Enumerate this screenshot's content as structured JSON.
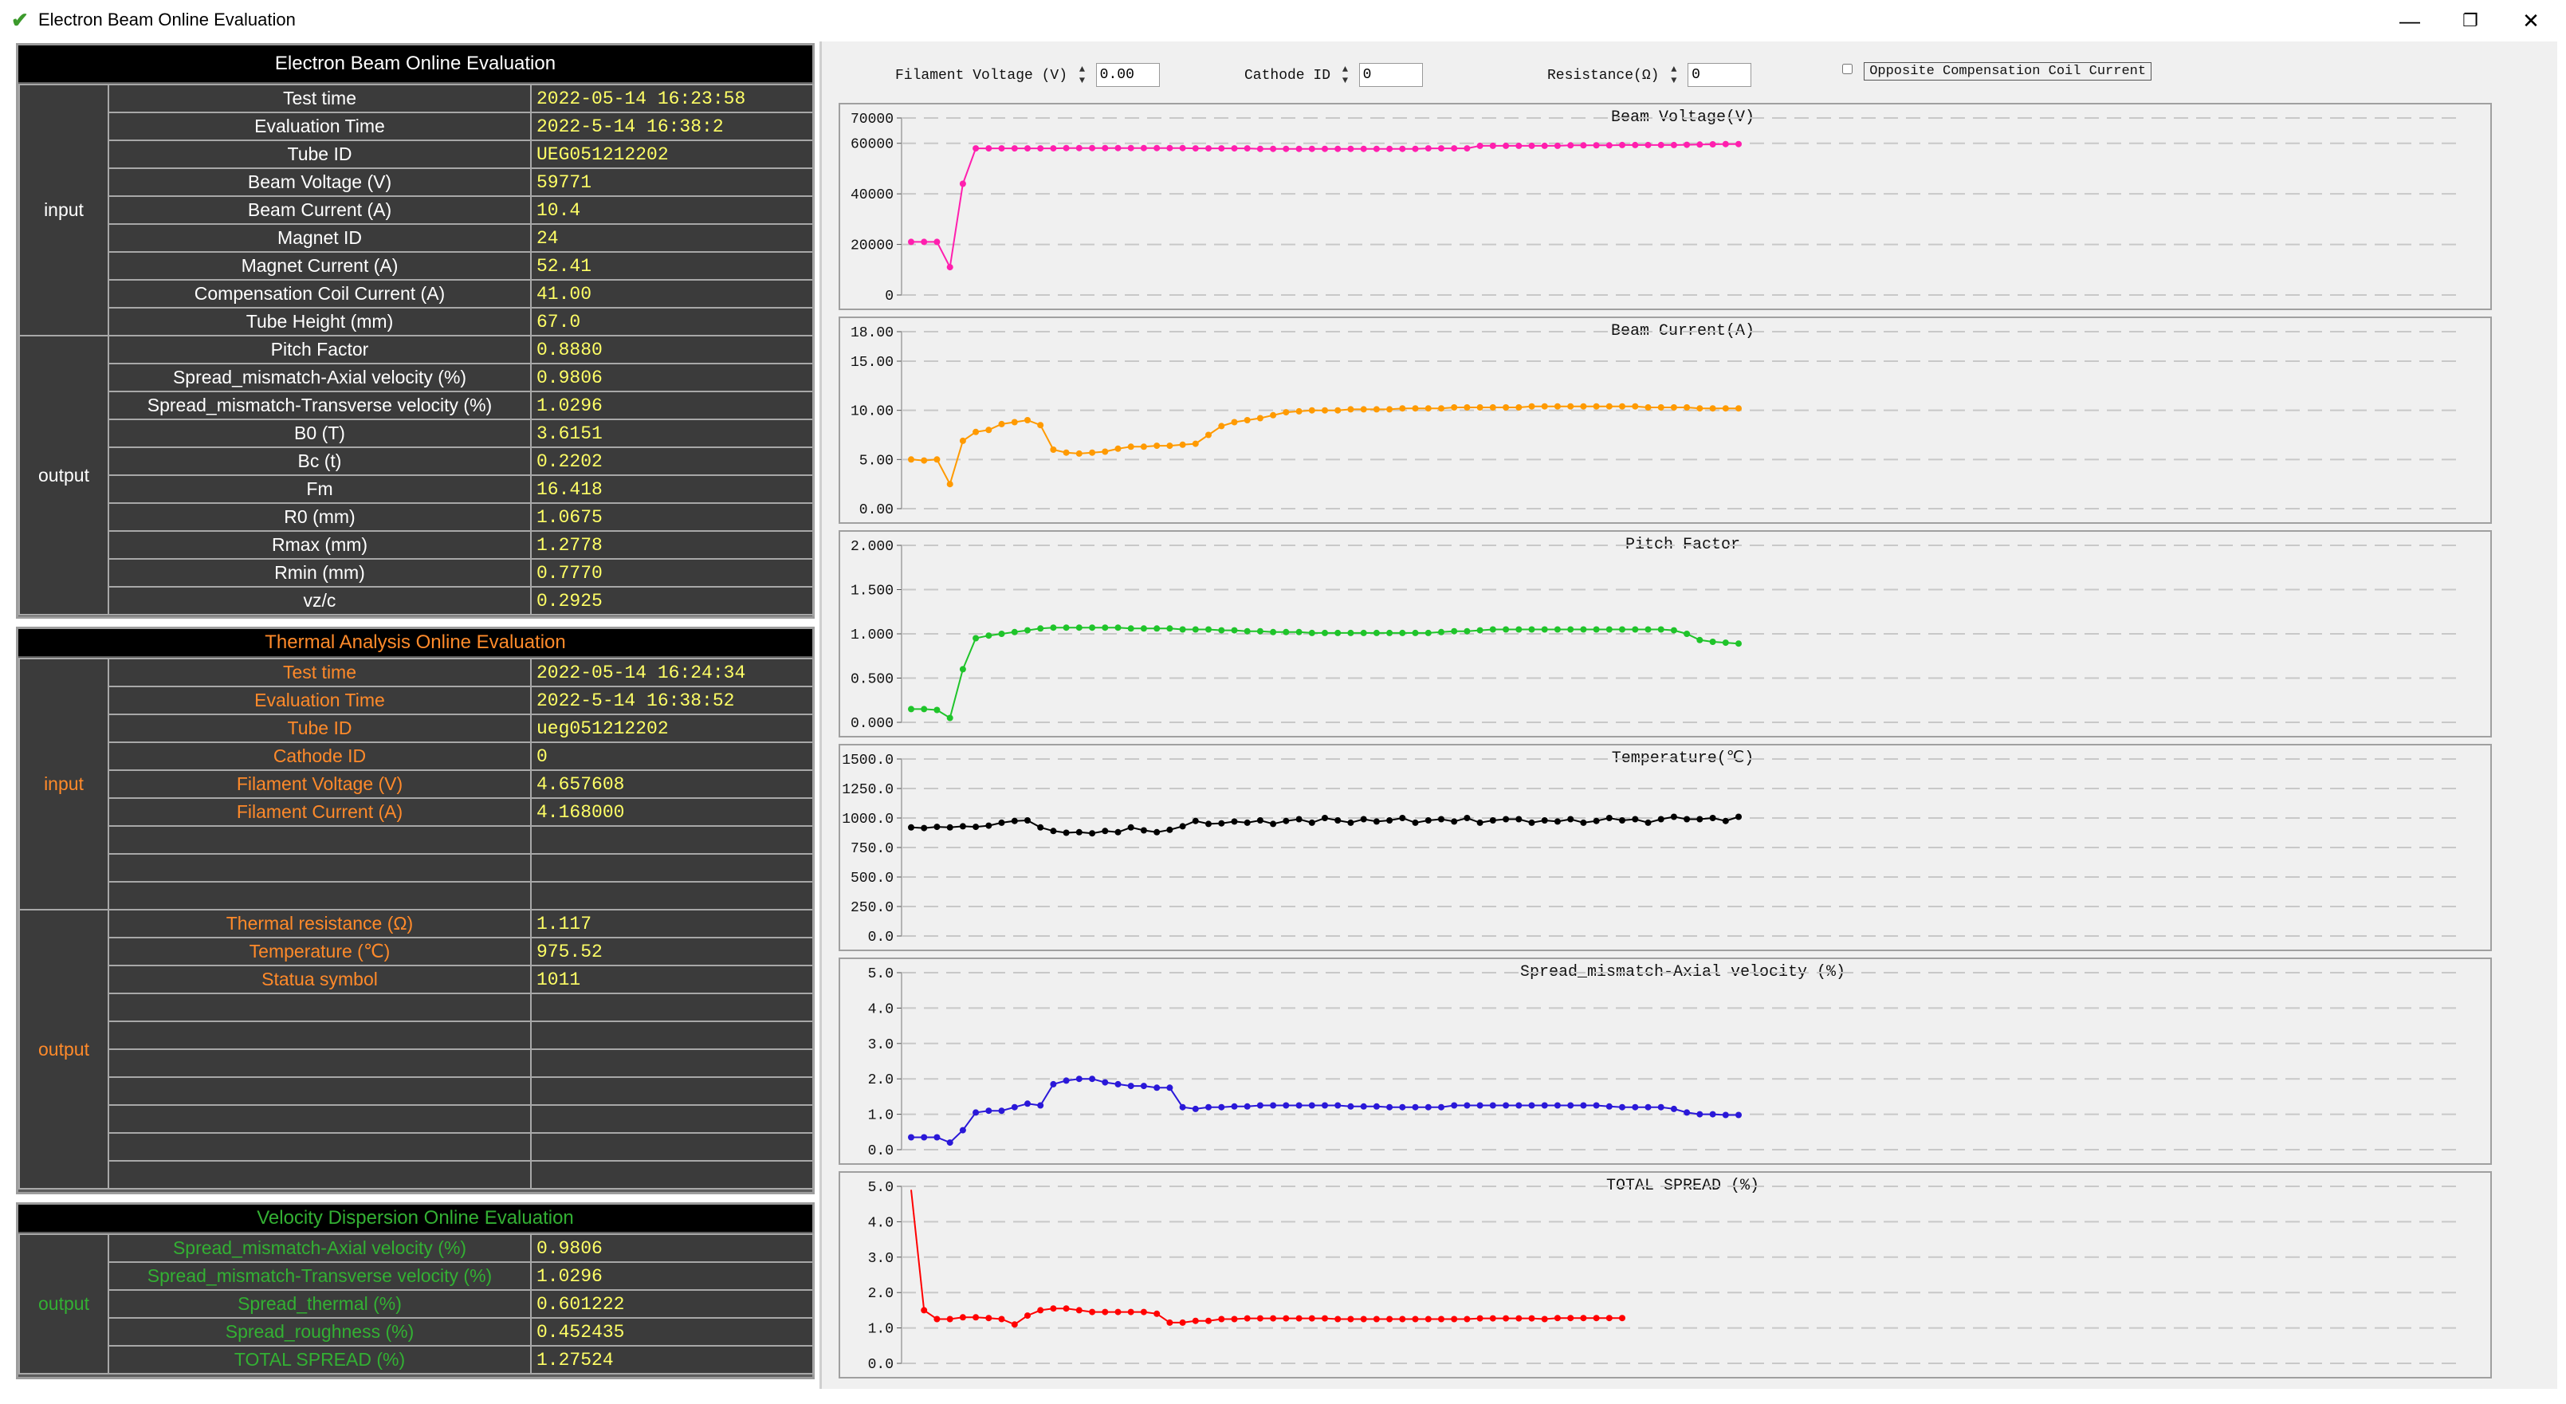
{
  "window": {
    "title": "Electron Beam Online Evaluation",
    "icon": "check-icon",
    "minimize": "—",
    "maximize": "❐",
    "close": "✕"
  },
  "beam": {
    "title": "Electron Beam Online Evaluation",
    "input_label": "input",
    "output_label": "output",
    "inputs": [
      {
        "label": "Test time",
        "value": "2022-05-14 16:23:58"
      },
      {
        "label": "Evaluation Time",
        "value": "2022-5-14 16:38:2"
      },
      {
        "label": "Tube ID",
        "value": "UEG051212202"
      },
      {
        "label": "Beam Voltage (V)",
        "value": "59771"
      },
      {
        "label": "Beam Current (A)",
        "value": "10.4"
      },
      {
        "label": "Magnet ID",
        "value": "24"
      },
      {
        "label": "Magnet Current (A)",
        "value": "52.41"
      },
      {
        "label": "Compensation Coil Current (A)",
        "value": "41.00"
      },
      {
        "label": "Tube Height (mm)",
        "value": "67.0"
      }
    ],
    "outputs": [
      {
        "label": "Pitch Factor",
        "value": "0.8880"
      },
      {
        "label": "Spread_mismatch-Axial velocity  (%)",
        "value": "0.9806"
      },
      {
        "label": "Spread_mismatch-Transverse velocity  (%)",
        "value": "1.0296"
      },
      {
        "label": "B0 (T)",
        "value": "3.6151"
      },
      {
        "label": "Bc (t)",
        "value": "0.2202"
      },
      {
        "label": "Fm",
        "value": "16.418"
      },
      {
        "label": "R0 (mm)",
        "value": "1.0675"
      },
      {
        "label": "Rmax (mm)",
        "value": "1.2778"
      },
      {
        "label": "Rmin (mm)",
        "value": "0.7770"
      },
      {
        "label": "vz/c",
        "value": "0.2925"
      }
    ]
  },
  "thermal": {
    "title": "Thermal Analysis Online Evaluation",
    "input_label": "input",
    "output_label": "output",
    "inputs": [
      {
        "label": "Test time",
        "value": "2022-05-14 16:24:34"
      },
      {
        "label": "Evaluation Time",
        "value": "2022-5-14 16:38:52"
      },
      {
        "label": "Tube ID",
        "value": "ueg051212202"
      },
      {
        "label": "Cathode ID",
        "value": "0"
      },
      {
        "label": "Filament Voltage (V)",
        "value": "4.657608"
      },
      {
        "label": "Filament Current (A)",
        "value": "4.168000"
      },
      {
        "label": "",
        "value": ""
      },
      {
        "label": "",
        "value": ""
      },
      {
        "label": "",
        "value": ""
      }
    ],
    "outputs": [
      {
        "label": "Thermal resistance  (Ω)",
        "value": "1.117"
      },
      {
        "label": "Temperature  (℃)",
        "value": "975.52"
      },
      {
        "label": "Statua symbol",
        "value": "1011"
      },
      {
        "label": "",
        "value": ""
      },
      {
        "label": "",
        "value": ""
      },
      {
        "label": "",
        "value": ""
      },
      {
        "label": "",
        "value": ""
      },
      {
        "label": "",
        "value": ""
      },
      {
        "label": "",
        "value": ""
      },
      {
        "label": "",
        "value": ""
      }
    ]
  },
  "velocity": {
    "title": "Velocity Dispersion Online Evaluation",
    "output_label": "output",
    "outputs": [
      {
        "label": "Spread_mismatch-Axial velocity  (%)",
        "value": "0.9806"
      },
      {
        "label": "Spread_mismatch-Transverse velocity  (%)",
        "value": "1.0296"
      },
      {
        "label": "Spread_thermal  (%)",
        "value": "0.601222"
      },
      {
        "label": "Spread_roughness  (%)",
        "value": "0.452435"
      },
      {
        "label": "TOTAL SPREAD   (%)",
        "value": "1.27524"
      }
    ]
  },
  "controls": {
    "filament_voltage": {
      "label": "Filament Voltage (V)",
      "value": "0.00"
    },
    "cathode_id": {
      "label": "Cathode ID",
      "value": "0"
    },
    "resistance": {
      "label": "Resistance(Ω)",
      "value": "0"
    },
    "opposite": {
      "label": "Opposite Compensation Coil Current",
      "checked": false
    }
  },
  "colors": {
    "beam_title": "#ffffff",
    "thermal_text": "#ff8a2a",
    "velocity_text": "#33b033",
    "value_text": "#ffff66",
    "label_text": "#ffffff"
  },
  "chart_data": [
    {
      "type": "line",
      "title": "Beam Voltage(V)",
      "color": "#ff1fae",
      "ylim": [
        0,
        70000
      ],
      "yticks": [
        0,
        20000,
        40000,
        60000,
        70000
      ],
      "ytick_labels": [
        "0",
        "20000",
        "40000",
        "60000",
        "70000"
      ],
      "y": [
        21000,
        21000,
        21000,
        11000,
        44000,
        58000,
        58000,
        58000,
        58000,
        58000,
        58000,
        58000,
        58100,
        58100,
        58100,
        58100,
        58100,
        58100,
        58100,
        58100,
        58100,
        58100,
        58000,
        58000,
        58000,
        58000,
        58000,
        57800,
        57800,
        57800,
        57800,
        57800,
        57800,
        57800,
        57800,
        57800,
        57800,
        57800,
        57800,
        57800,
        58000,
        58000,
        58000,
        58000,
        59000,
        59000,
        59000,
        59000,
        59000,
        59000,
        59000,
        59200,
        59200,
        59200,
        59200,
        59300,
        59300,
        59300,
        59300,
        59300,
        59400,
        59500,
        59600,
        59700,
        59700
      ]
    },
    {
      "type": "line",
      "title": "Beam Current(A)",
      "color": "#ff9a00",
      "ylim": [
        0,
        18
      ],
      "yticks": [
        0,
        5,
        10,
        15,
        18
      ],
      "ytick_labels": [
        "0.00",
        "5.00",
        "10.00",
        "15.00",
        "18.00"
      ],
      "y": [
        5.0,
        4.9,
        5.0,
        2.5,
        6.9,
        7.8,
        8.0,
        8.6,
        8.8,
        9.0,
        8.5,
        6.0,
        5.7,
        5.6,
        5.7,
        5.8,
        6.1,
        6.3,
        6.3,
        6.4,
        6.4,
        6.5,
        6.6,
        7.5,
        8.4,
        8.8,
        9.0,
        9.2,
        9.5,
        9.8,
        9.9,
        10.0,
        10.0,
        10.0,
        10.1,
        10.1,
        10.1,
        10.1,
        10.2,
        10.2,
        10.2,
        10.2,
        10.3,
        10.3,
        10.3,
        10.3,
        10.3,
        10.3,
        10.4,
        10.4,
        10.4,
        10.4,
        10.4,
        10.4,
        10.4,
        10.4,
        10.4,
        10.3,
        10.3,
        10.3,
        10.3,
        10.2,
        10.2,
        10.2,
        10.2
      ]
    },
    {
      "type": "line",
      "title": "Pitch Factor",
      "color": "#1fc42a",
      "ylim": [
        0,
        2
      ],
      "yticks": [
        0,
        0.5,
        1,
        1.5,
        2
      ],
      "ytick_labels": [
        "0.000",
        "0.500",
        "1.000",
        "1.500",
        "2.000"
      ],
      "y": [
        0.15,
        0.15,
        0.14,
        0.05,
        0.6,
        0.95,
        0.98,
        1.0,
        1.02,
        1.04,
        1.06,
        1.07,
        1.07,
        1.07,
        1.07,
        1.07,
        1.07,
        1.06,
        1.06,
        1.06,
        1.06,
        1.05,
        1.05,
        1.05,
        1.04,
        1.04,
        1.03,
        1.03,
        1.02,
        1.02,
        1.02,
        1.01,
        1.01,
        1.01,
        1.01,
        1.01,
        1.01,
        1.01,
        1.01,
        1.01,
        1.01,
        1.02,
        1.03,
        1.03,
        1.04,
        1.05,
        1.05,
        1.05,
        1.05,
        1.05,
        1.05,
        1.05,
        1.05,
        1.05,
        1.05,
        1.05,
        1.05,
        1.05,
        1.05,
        1.04,
        1.0,
        0.93,
        0.91,
        0.9,
        0.89
      ]
    },
    {
      "type": "line",
      "title": "Temperature(℃)",
      "color": "#000000",
      "ylim": [
        0,
        1500
      ],
      "yticks": [
        0,
        250,
        500,
        750,
        1000,
        1250,
        1500
      ],
      "ytick_labels": [
        "0.0",
        "250.0",
        "500.0",
        "750.0",
        "1000.0",
        "1250.0",
        "1500.0"
      ],
      "y": [
        920,
        915,
        925,
        920,
        930,
        925,
        935,
        960,
        975,
        980,
        920,
        890,
        875,
        880,
        870,
        890,
        880,
        920,
        895,
        880,
        900,
        930,
        975,
        950,
        955,
        970,
        960,
        980,
        950,
        975,
        990,
        960,
        1000,
        980,
        960,
        990,
        970,
        980,
        1000,
        960,
        980,
        990,
        970,
        1000,
        960,
        980,
        990,
        990,
        960,
        980,
        970,
        990,
        960,
        975,
        1000,
        980,
        990,
        960,
        990,
        1010,
        990,
        990,
        1000,
        975,
        1010
      ]
    },
    {
      "type": "line",
      "title": "Spread_mismatch-Axial velocity (%)",
      "color": "#2a18d8",
      "ylim": [
        0,
        5
      ],
      "yticks": [
        0,
        1,
        2,
        3,
        4,
        5
      ],
      "ytick_labels": [
        "0.0",
        "1.0",
        "2.0",
        "3.0",
        "4.0",
        "5.0"
      ],
      "y": [
        0.35,
        0.35,
        0.35,
        0.2,
        0.55,
        1.05,
        1.1,
        1.1,
        1.2,
        1.3,
        1.25,
        1.85,
        1.95,
        2.0,
        2.0,
        1.9,
        1.85,
        1.8,
        1.8,
        1.75,
        1.75,
        1.2,
        1.15,
        1.2,
        1.2,
        1.22,
        1.22,
        1.25,
        1.25,
        1.25,
        1.25,
        1.25,
        1.25,
        1.25,
        1.22,
        1.22,
        1.22,
        1.2,
        1.2,
        1.2,
        1.2,
        1.2,
        1.25,
        1.25,
        1.25,
        1.25,
        1.25,
        1.25,
        1.25,
        1.25,
        1.25,
        1.25,
        1.25,
        1.25,
        1.22,
        1.2,
        1.2,
        1.2,
        1.2,
        1.15,
        1.05,
        1.0,
        1.0,
        0.98,
        0.98
      ]
    },
    {
      "type": "line",
      "title": "TOTAL SPREAD  (%)",
      "color": "#ff0000",
      "ylim": [
        0,
        5
      ],
      "yticks": [
        0,
        1,
        2,
        3,
        4,
        5
      ],
      "ytick_labels": [
        "0.0",
        "1.0",
        "2.0",
        "3.0",
        "4.0",
        "5.0"
      ],
      "y": [
        4.9,
        1.5,
        1.25,
        1.25,
        1.3,
        1.3,
        1.28,
        1.25,
        1.1,
        1.35,
        1.5,
        1.55,
        1.55,
        1.5,
        1.45,
        1.45,
        1.45,
        1.45,
        1.45,
        1.4,
        1.15,
        1.15,
        1.2,
        1.2,
        1.25,
        1.25,
        1.27,
        1.27,
        1.27,
        1.27,
        1.27,
        1.27,
        1.27,
        1.25,
        1.25,
        1.25,
        1.25,
        1.25,
        1.25,
        1.25,
        1.25,
        1.25,
        1.25,
        1.25,
        1.27,
        1.27,
        1.27,
        1.27,
        1.27,
        1.25,
        1.28,
        1.28,
        1.28,
        1.28,
        1.28,
        1.28
      ]
    }
  ]
}
